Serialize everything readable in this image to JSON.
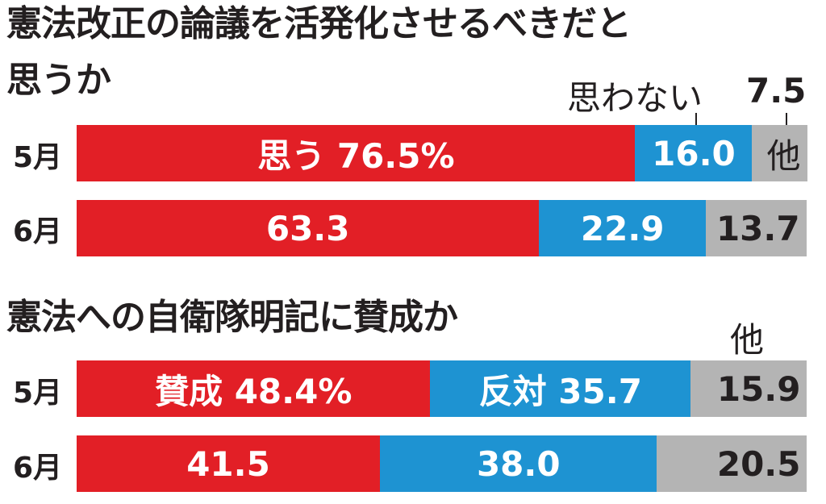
{
  "chart_data": [
    {
      "type": "bar",
      "orientation": "horizontal-stacked-100",
      "title": "憲法改正の論議を活発化させるべきだと思うか",
      "title_lines": [
        "憲法改正の論議を活発化させるべきだと",
        "思うか"
      ],
      "categories": [
        "5月",
        "6月"
      ],
      "series": [
        {
          "name": "思う",
          "values": [
            76.5,
            63.3
          ],
          "color": "#e21f26"
        },
        {
          "name": "思わない",
          "values": [
            16.0,
            22.9
          ],
          "color": "#1e93d2"
        },
        {
          "name": "他",
          "values": [
            7.5,
            13.7
          ],
          "color": "#b4b4b4"
        }
      ],
      "labels": [
        [
          "思う 76.5%",
          "16.0",
          "他"
        ],
        [
          "63.3",
          "22.9",
          "13.7"
        ]
      ],
      "annotations": {
        "series2_name": "思わない",
        "series3_value": "7.5"
      },
      "xlim": [
        0,
        100
      ]
    },
    {
      "type": "bar",
      "orientation": "horizontal-stacked-100",
      "title": "憲法への自衛隊明記に賛成か",
      "title_lines": [
        "憲法への自衛隊明記に賛成か"
      ],
      "categories": [
        "5月",
        "6月"
      ],
      "series": [
        {
          "name": "賛成",
          "values": [
            48.4,
            41.5
          ],
          "color": "#e21f26"
        },
        {
          "name": "反対",
          "values": [
            35.7,
            38.0
          ],
          "color": "#1e93d2"
        },
        {
          "name": "他",
          "values": [
            15.9,
            20.5
          ],
          "color": "#b4b4b4"
        }
      ],
      "labels": [
        [
          "賛成 48.4%",
          "反対 35.7",
          "15.9"
        ],
        [
          "41.5",
          "38.0",
          "20.5"
        ]
      ],
      "annotations": {
        "series3_name": "他"
      },
      "xlim": [
        0,
        100
      ]
    }
  ]
}
